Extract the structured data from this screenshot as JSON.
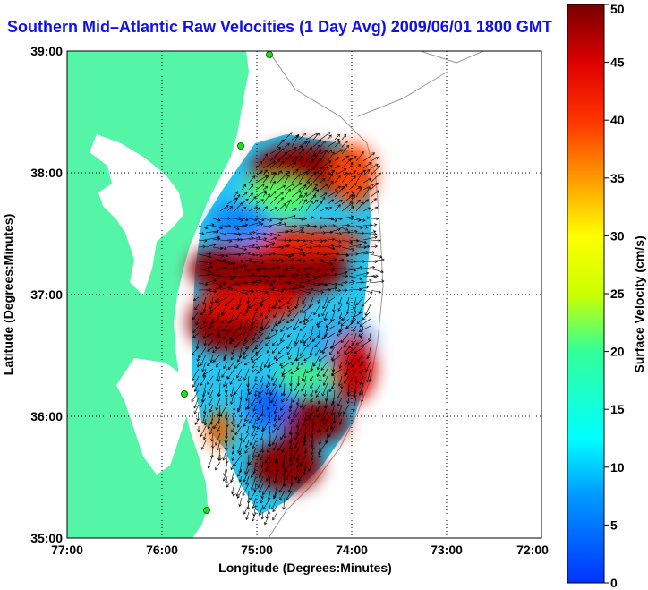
{
  "map": {
    "title": "Southern Mid–Atlantic Raw Velocities (1 Day Avg) 2009/06/01 1800 GMT",
    "xlabel": "Longitude (Degrees:Minutes)",
    "ylabel": "Latitude (Degrees:Minutes)",
    "x_ticks": [
      "77:00",
      "76:00",
      "75:00",
      "74:00",
      "73:00",
      "72:00"
    ],
    "y_ticks": [
      "39:00",
      "38:00",
      "37:00",
      "36:00",
      "35:00"
    ],
    "colors": {
      "land": "#55f5a8",
      "title": "#1010ee"
    }
  },
  "colorbar": {
    "label": "Surface Velocity (cm/s)",
    "ticks": [
      "50",
      "45",
      "40",
      "35",
      "30",
      "25",
      "20",
      "15",
      "10",
      "5",
      "0"
    ],
    "range": [
      0,
      50
    ]
  },
  "chart_data": {
    "type": "heatmap",
    "title": "Southern Mid–Atlantic Raw Velocities (1 Day Avg) 2009/06/01 1800 GMT",
    "xlabel": "Longitude (Degrees:Minutes)",
    "ylabel": "Latitude (Degrees:Minutes)",
    "xlim": [
      "77:00",
      "72:00"
    ],
    "ylim": [
      "35:00",
      "39:00"
    ],
    "grid": true,
    "value_label": "Surface Velocity (cm/s)",
    "value_range": [
      0,
      50
    ]
  }
}
